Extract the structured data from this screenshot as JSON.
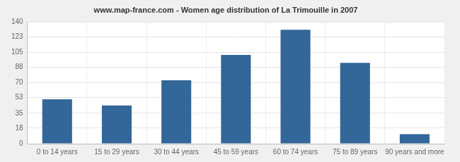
{
  "chart_data": {
    "type": "bar",
    "title": "www.map-france.com - Women age distribution of La Trimouille in 2007",
    "categories": [
      "0 to 14 years",
      "15 to 29 years",
      "30 to 44 years",
      "45 to 59 years",
      "60 to 74 years",
      "75 to 89 years",
      "90 years and more"
    ],
    "values": [
      51,
      44,
      73,
      102,
      131,
      93,
      11
    ],
    "color": "#336699",
    "ylim": [
      0,
      140
    ],
    "yticks": [
      0,
      18,
      35,
      53,
      70,
      88,
      105,
      123,
      140
    ],
    "grid": true
  }
}
